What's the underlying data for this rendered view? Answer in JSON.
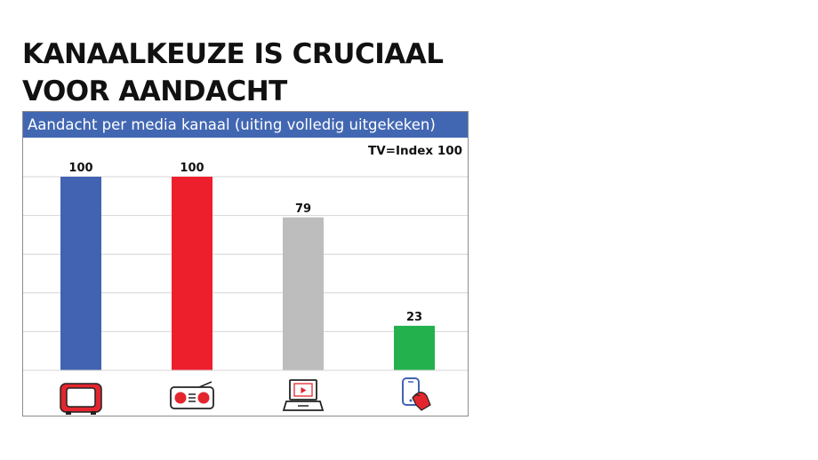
{
  "headline": {
    "line1": "KANAALKEUZE IS CRUCIAAL",
    "line2": "VOOR AANDACHT"
  },
  "chart_data": {
    "type": "bar",
    "title": "Aandacht per media kanaal (uiting volledig uitgekeken)",
    "note": "TV=Index 100",
    "categories": [
      "tv-icon",
      "radio-icon",
      "laptop-icon",
      "smartphone-icon"
    ],
    "values": [
      100,
      100,
      79,
      23
    ],
    "value_labels": [
      "100",
      "100",
      "79",
      "23"
    ],
    "colors": [
      "#4163b1",
      "#ee1f2c",
      "#bdbdbd",
      "#23b14d"
    ],
    "ylim": [
      0,
      100
    ],
    "grid": true,
    "xlabel": "",
    "ylabel": ""
  }
}
